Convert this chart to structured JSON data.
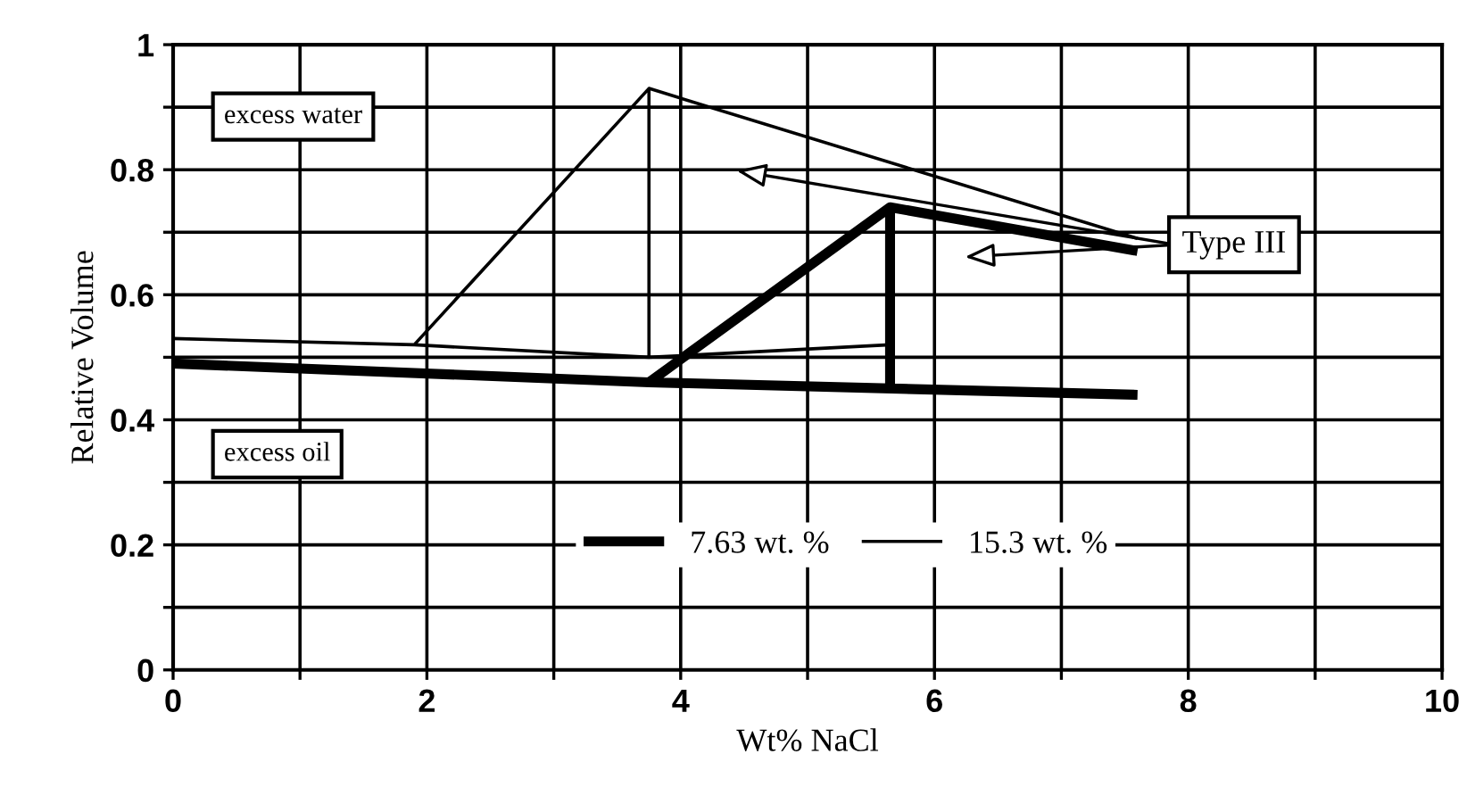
{
  "chart_data": {
    "type": "line",
    "xlabel": "Wt% NaCl",
    "ylabel": "Relative Volume",
    "xlim": [
      0,
      10
    ],
    "ylim": [
      0,
      1
    ],
    "xticks": [
      0,
      {
        "value": 1,
        "label": null
      },
      2,
      {
        "value": 3,
        "label": null
      },
      4,
      {
        "value": 5,
        "label": null
      },
      6,
      {
        "value": 7,
        "label": null
      },
      8,
      {
        "value": 9,
        "label": null
      },
      10
    ],
    "yticks": [
      0,
      {
        "value": 0.1,
        "label": null
      },
      0.2,
      {
        "value": 0.3,
        "label": null
      },
      0.4,
      {
        "value": 0.5,
        "label": null
      },
      0.6,
      {
        "value": 0.7,
        "label": null
      },
      0.8,
      {
        "value": 0.9,
        "label": null
      },
      1
    ],
    "grid": true,
    "legend": "bottom",
    "marker": "none",
    "line_style": "solid",
    "series": [
      {
        "name": "7.63 wt. %",
        "color": "#000000",
        "x": [
          0,
          3.75,
          7.6,
          null,
          3.75,
          5.65,
          7.6,
          null,
          5.65,
          5.65
        ],
        "values": [
          0.49,
          0.46,
          0.44,
          null,
          0.46,
          0.74,
          0.67,
          null,
          0.74,
          0.45
        ]
      },
      {
        "name": "15.3 wt. %",
        "color": "#000000",
        "x": [
          0,
          1.9,
          3.75,
          7.6,
          null,
          1.9,
          3.75,
          5.65,
          null,
          3.75,
          3.75
        ],
        "values": [
          0.53,
          0.52,
          0.93,
          0.69,
          null,
          0.52,
          0.5,
          0.52,
          null,
          0.93,
          0.5
        ]
      }
    ],
    "annotations": [
      "excess water",
      "excess oil",
      "Type III"
    ]
  }
}
